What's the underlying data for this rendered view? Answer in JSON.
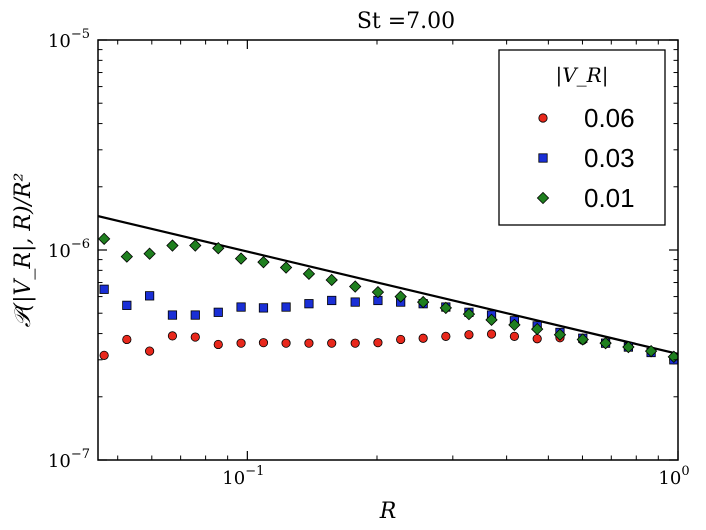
{
  "chart_data": {
    "type": "scatter",
    "title": "St =7.00",
    "xlabel": "R",
    "ylabel": "𝒫(|V_R|, R)/R²",
    "xscale": "log",
    "yscale": "log",
    "xlim": [
      0.045,
      1.0
    ],
    "ylim": [
      1e-07,
      1e-05
    ],
    "xticks": [
      {
        "value": 0.1,
        "base": "10",
        "exp": "−1"
      },
      {
        "value": 1.0,
        "base": "10",
        "exp": "0"
      }
    ],
    "yticks": [
      {
        "value": 1e-07,
        "base": "10",
        "exp": "−7"
      },
      {
        "value": 1e-06,
        "base": "10",
        "exp": "−6"
      },
      {
        "value": 1e-05,
        "base": "10",
        "exp": "−5"
      }
    ],
    "legend": {
      "title": "|V_R|",
      "position": "top-right"
    },
    "series": [
      {
        "name": "0.06",
        "marker": "circle",
        "color": "#e8281c",
        "x": [
          0.0465,
          0.0525,
          0.0593,
          0.067,
          0.0757,
          0.0856,
          0.0967,
          0.109,
          0.123,
          0.139,
          0.157,
          0.178,
          0.201,
          0.227,
          0.256,
          0.289,
          0.327,
          0.369,
          0.417,
          0.471,
          0.532,
          0.601,
          0.679,
          0.767,
          0.866,
          0.978
        ],
        "values": [
          3.15e-07,
          3.75e-07,
          3.3e-07,
          3.9e-07,
          3.85e-07,
          3.55e-07,
          3.6e-07,
          3.62e-07,
          3.6e-07,
          3.6e-07,
          3.6e-07,
          3.6e-07,
          3.62e-07,
          3.75e-07,
          3.8e-07,
          3.88e-07,
          3.95e-07,
          3.98e-07,
          3.88e-07,
          3.78e-07,
          3.82e-07,
          3.72e-07,
          3.6e-07,
          3.45e-07,
          3.25e-07,
          3e-07
        ]
      },
      {
        "name": "0.03",
        "marker": "square",
        "color": "#1a2fd6",
        "x": [
          0.0465,
          0.0525,
          0.0593,
          0.067,
          0.0757,
          0.0856,
          0.0967,
          0.109,
          0.123,
          0.139,
          0.157,
          0.178,
          0.201,
          0.227,
          0.256,
          0.289,
          0.327,
          0.369,
          0.417,
          0.471,
          0.532,
          0.601,
          0.679,
          0.767,
          0.866,
          0.978
        ],
        "values": [
          6.5e-07,
          5.45e-07,
          6.05e-07,
          4.9e-07,
          4.9e-07,
          5.05e-07,
          5.35e-07,
          5.3e-07,
          5.35e-07,
          5.55e-07,
          5.75e-07,
          5.65e-07,
          5.75e-07,
          5.65e-07,
          5.55e-07,
          5.35e-07,
          5.05e-07,
          4.9e-07,
          4.6e-07,
          4.35e-07,
          4.05e-07,
          3.8e-07,
          3.6e-07,
          3.45e-07,
          3.25e-07,
          3e-07
        ]
      },
      {
        "name": "0.01",
        "marker": "diamond",
        "color": "#1f7f1f",
        "x": [
          0.0465,
          0.0525,
          0.0593,
          0.067,
          0.0757,
          0.0856,
          0.0967,
          0.109,
          0.123,
          0.139,
          0.157,
          0.178,
          0.201,
          0.227,
          0.256,
          0.289,
          0.327,
          0.369,
          0.417,
          0.471,
          0.532,
          0.601,
          0.679,
          0.767,
          0.866,
          0.978
        ],
        "values": [
          1.13e-06,
          9.3e-07,
          9.6e-07,
          1.05e-06,
          1.05e-06,
          1.02e-06,
          9.1e-07,
          8.75e-07,
          8.25e-07,
          7.7e-07,
          7.2e-07,
          6.7e-07,
          6.3e-07,
          6e-07,
          5.65e-07,
          5.3e-07,
          4.95e-07,
          4.65e-07,
          4.4e-07,
          4.2e-07,
          3.95e-07,
          3.75e-07,
          3.6e-07,
          3.45e-07,
          3.3e-07,
          3.1e-07
        ]
      }
    ],
    "fit_line": {
      "color": "#000000",
      "x": [
        0.045,
        1.0
      ],
      "values": [
        1.45e-06,
        3.2e-07
      ]
    }
  }
}
